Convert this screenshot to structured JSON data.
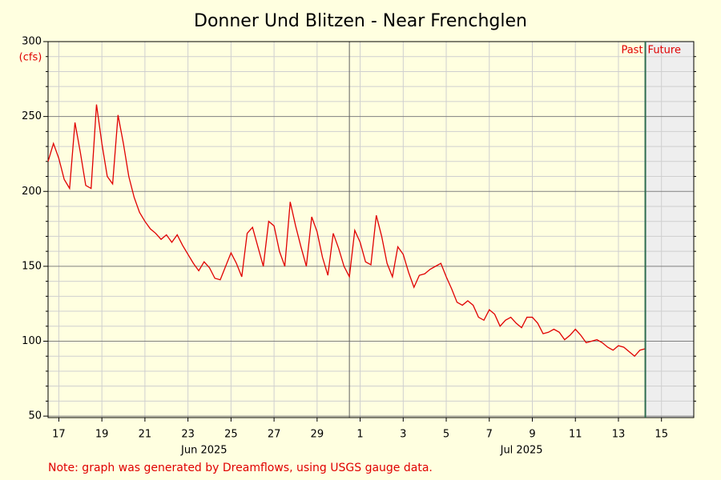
{
  "chart_data": {
    "type": "line",
    "title": "Donner Und Blitzen - Near Frenchglen",
    "y_unit_label": "(cfs)",
    "note": "Note: graph was generated by Dreamflows, using USGS gauge data.",
    "past_label": "Past",
    "future_label": "Future",
    "now": "2025-07-14T18:00",
    "month_boundaries": [
      "2025-07-01T00:00"
    ],
    "xlim": [
      "2025-06-17T00:00",
      "2025-07-17T00:00"
    ],
    "ylim": [
      49,
      300
    ],
    "yticks": [
      50,
      100,
      150,
      200,
      250,
      300
    ],
    "yminorticks": [
      60,
      70,
      80,
      90,
      110,
      120,
      130,
      140,
      160,
      170,
      180,
      190,
      210,
      220,
      230,
      240,
      260,
      270,
      280,
      290
    ],
    "grid": true,
    "xticks": [
      {
        "value": "2025-06-17T12:00",
        "label": "17"
      },
      {
        "value": "2025-06-19T12:00",
        "label": "19"
      },
      {
        "value": "2025-06-21T12:00",
        "label": "21"
      },
      {
        "value": "2025-06-23T12:00",
        "label": "23"
      },
      {
        "value": "2025-06-25T12:00",
        "label": "25"
      },
      {
        "value": "2025-06-27T12:00",
        "label": "27"
      },
      {
        "value": "2025-06-29T12:00",
        "label": "29"
      },
      {
        "value": "2025-07-01T12:00",
        "label": "1"
      },
      {
        "value": "2025-07-03T12:00",
        "label": "3"
      },
      {
        "value": "2025-07-05T12:00",
        "label": "5"
      },
      {
        "value": "2025-07-07T12:00",
        "label": "7"
      },
      {
        "value": "2025-07-09T12:00",
        "label": "9"
      },
      {
        "value": "2025-07-11T12:00",
        "label": "11"
      },
      {
        "value": "2025-07-13T12:00",
        "label": "13"
      },
      {
        "value": "2025-07-15T12:00",
        "label": "15"
      }
    ],
    "month_labels": [
      {
        "value": "2025-06-24T06:00",
        "label": "Jun 2025"
      },
      {
        "value": "2025-07-09T00:00",
        "label": "Jul 2025"
      }
    ],
    "x": [
      "2025-06-17T00:00",
      "2025-06-17T06:00",
      "2025-06-17T12:00",
      "2025-06-17T18:00",
      "2025-06-18T00:00",
      "2025-06-18T06:00",
      "2025-06-18T12:00",
      "2025-06-18T18:00",
      "2025-06-19T00:00",
      "2025-06-19T06:00",
      "2025-06-19T12:00",
      "2025-06-19T18:00",
      "2025-06-20T00:00",
      "2025-06-20T06:00",
      "2025-06-20T12:00",
      "2025-06-20T18:00",
      "2025-06-21T00:00",
      "2025-06-21T06:00",
      "2025-06-21T12:00",
      "2025-06-21T18:00",
      "2025-06-22T00:00",
      "2025-06-22T06:00",
      "2025-06-22T12:00",
      "2025-06-22T18:00",
      "2025-06-23T00:00",
      "2025-06-23T06:00",
      "2025-06-23T12:00",
      "2025-06-23T18:00",
      "2025-06-24T00:00",
      "2025-06-24T06:00",
      "2025-06-24T12:00",
      "2025-06-24T18:00",
      "2025-06-25T00:00",
      "2025-06-25T06:00",
      "2025-06-25T12:00",
      "2025-06-25T18:00",
      "2025-06-26T00:00",
      "2025-06-26T06:00",
      "2025-06-26T12:00",
      "2025-06-26T18:00",
      "2025-06-27T00:00",
      "2025-06-27T06:00",
      "2025-06-27T12:00",
      "2025-06-27T18:00",
      "2025-06-28T00:00",
      "2025-06-28T06:00",
      "2025-06-28T12:00",
      "2025-06-28T18:00",
      "2025-06-29T00:00",
      "2025-06-29T06:00",
      "2025-06-29T12:00",
      "2025-06-29T18:00",
      "2025-06-30T00:00",
      "2025-06-30T06:00",
      "2025-06-30T12:00",
      "2025-06-30T18:00",
      "2025-07-01T00:00",
      "2025-07-01T06:00",
      "2025-07-01T12:00",
      "2025-07-01T18:00",
      "2025-07-02T00:00",
      "2025-07-02T06:00",
      "2025-07-02T12:00",
      "2025-07-02T18:00",
      "2025-07-03T00:00",
      "2025-07-03T06:00",
      "2025-07-03T12:00",
      "2025-07-03T18:00",
      "2025-07-04T00:00",
      "2025-07-04T06:00",
      "2025-07-04T12:00",
      "2025-07-04T18:00",
      "2025-07-05T00:00",
      "2025-07-05T06:00",
      "2025-07-05T12:00",
      "2025-07-05T18:00",
      "2025-07-06T00:00",
      "2025-07-06T06:00",
      "2025-07-06T12:00",
      "2025-07-06T18:00",
      "2025-07-07T00:00",
      "2025-07-07T06:00",
      "2025-07-07T12:00",
      "2025-07-07T18:00",
      "2025-07-08T00:00",
      "2025-07-08T06:00",
      "2025-07-08T12:00",
      "2025-07-08T18:00",
      "2025-07-09T00:00",
      "2025-07-09T06:00",
      "2025-07-09T12:00",
      "2025-07-09T18:00",
      "2025-07-10T00:00",
      "2025-07-10T06:00",
      "2025-07-10T12:00",
      "2025-07-10T18:00",
      "2025-07-11T00:00",
      "2025-07-11T06:00",
      "2025-07-11T12:00",
      "2025-07-11T18:00",
      "2025-07-12T00:00",
      "2025-07-12T06:00",
      "2025-07-12T12:00",
      "2025-07-12T18:00",
      "2025-07-13T00:00",
      "2025-07-13T06:00",
      "2025-07-13T12:00",
      "2025-07-13T18:00",
      "2025-07-14T00:00",
      "2025-07-14T06:00",
      "2025-07-14T12:00",
      "2025-07-14T18:00"
    ],
    "series": [
      {
        "color": "#e00000",
        "values": [
          220,
          232,
          222,
          208,
          202,
          246,
          226,
          204,
          202,
          258,
          232,
          210,
          205,
          251,
          232,
          210,
          196,
          186,
          180,
          175,
          172,
          168,
          171,
          166,
          171,
          164,
          158,
          152,
          147,
          153,
          149,
          142,
          141,
          150,
          159,
          152,
          143,
          172,
          176,
          163,
          150,
          180,
          177,
          160,
          150,
          193,
          177,
          163,
          150,
          183,
          173,
          156,
          144,
          172,
          162,
          150,
          143,
          174,
          166,
          153,
          151,
          184,
          170,
          152,
          143,
          163,
          158,
          146,
          136,
          144,
          145,
          148,
          150,
          152,
          143,
          135,
          126,
          124,
          127,
          124,
          116,
          114,
          121,
          118,
          110,
          114,
          116,
          112,
          109,
          116,
          116,
          112,
          105,
          106,
          108,
          106,
          101,
          104,
          108,
          104,
          99,
          100,
          101,
          99,
          96,
          94,
          97,
          96,
          93,
          90,
          94,
          95
        ]
      }
    ]
  }
}
